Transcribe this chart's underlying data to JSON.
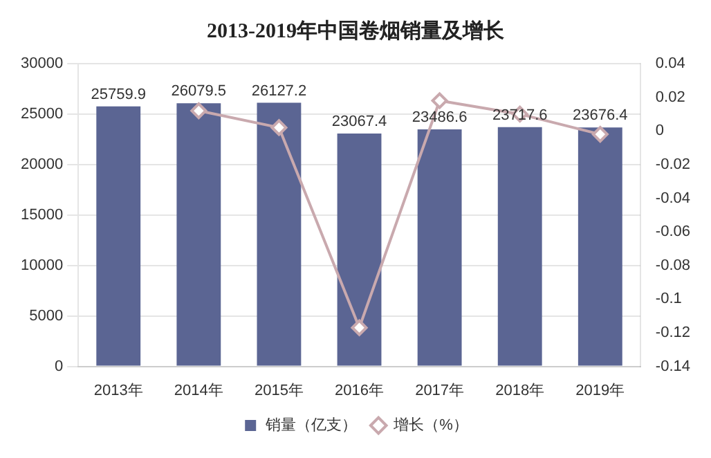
{
  "chart_data": {
    "type": "bar",
    "title": "2013-2019年中国卷烟销量及增长",
    "categories": [
      "2013年",
      "2014年",
      "2015年",
      "2016年",
      "2017年",
      "2018年",
      "2019年"
    ],
    "series": [
      {
        "name": "销量（亿支）",
        "color": "#5b6593",
        "values": [
          25759.9,
          26079.5,
          26127.2,
          23067.4,
          23486.6,
          23717.6,
          23676.4
        ],
        "value_labels": [
          "25759.9",
          "26079.5",
          "26127.2",
          "23067.4",
          "23486.6",
          "23717.6",
          "23676.4"
        ]
      },
      {
        "name": "增长（%）",
        "type": "line",
        "axis": "y2",
        "color": "#c9a9ae",
        "marker": "diamond",
        "values": [
          null,
          0.012,
          0.002,
          -0.117,
          0.018,
          0.01,
          -0.002
        ]
      }
    ],
    "ylim": [
      0,
      30000
    ],
    "yticks": [
      0,
      5000,
      10000,
      15000,
      20000,
      25000,
      30000
    ],
    "y2lim": [
      -0.14,
      0.04
    ],
    "y2ticks": [
      -0.14,
      -0.12,
      -0.1,
      -0.08,
      -0.06,
      -0.04,
      -0.02,
      0,
      0.02,
      0.04
    ],
    "grid": "y",
    "legend": "bottom"
  }
}
